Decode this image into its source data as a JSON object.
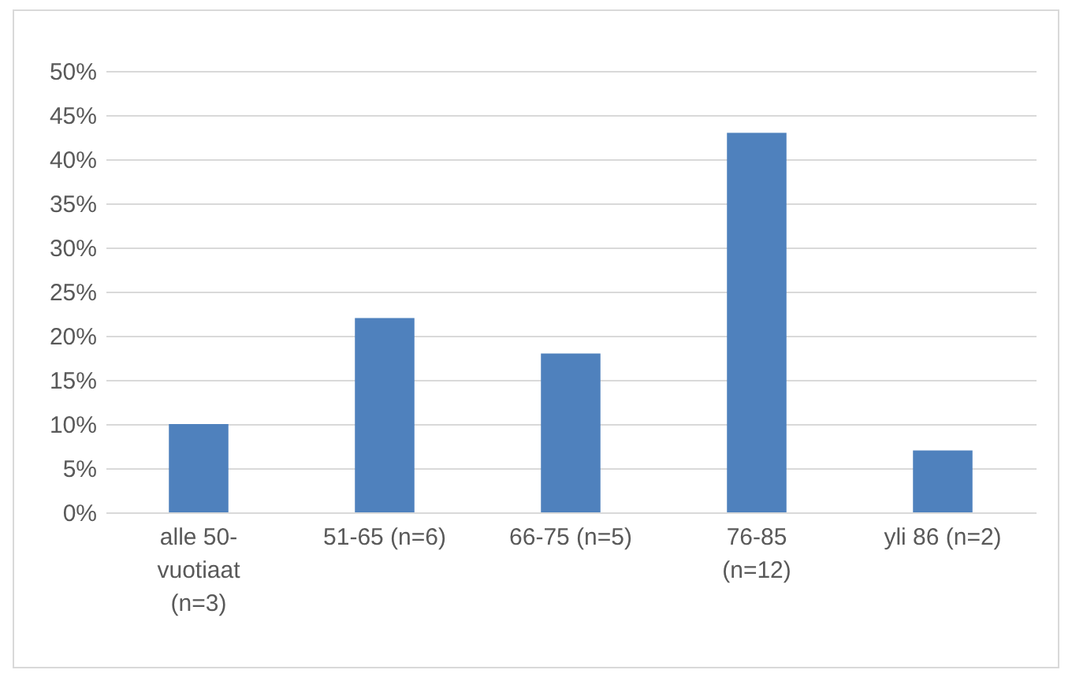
{
  "chart_data": {
    "type": "bar",
    "categories": [
      "alle 50-\nvuotiaat\n(n=3)",
      "51-65 (n=6)",
      "66-75 (n=5)",
      "76-85\n(n=12)",
      "yli 86 (n=2)"
    ],
    "values": [
      10,
      22,
      18,
      43,
      7
    ],
    "color": "#4f81bd",
    "ylim": [
      0,
      50
    ],
    "yticks": [
      {
        "value": 0,
        "label": "0%"
      },
      {
        "value": 5,
        "label": "5%"
      },
      {
        "value": 10,
        "label": "10%"
      },
      {
        "value": 15,
        "label": "15%"
      },
      {
        "value": 20,
        "label": "20%"
      },
      {
        "value": 25,
        "label": "25%"
      },
      {
        "value": 30,
        "label": "30%"
      },
      {
        "value": 35,
        "label": "35%"
      },
      {
        "value": 40,
        "label": "40%"
      },
      {
        "value": 45,
        "label": "45%"
      },
      {
        "value": 50,
        "label": "50%"
      }
    ],
    "grid": "y"
  }
}
